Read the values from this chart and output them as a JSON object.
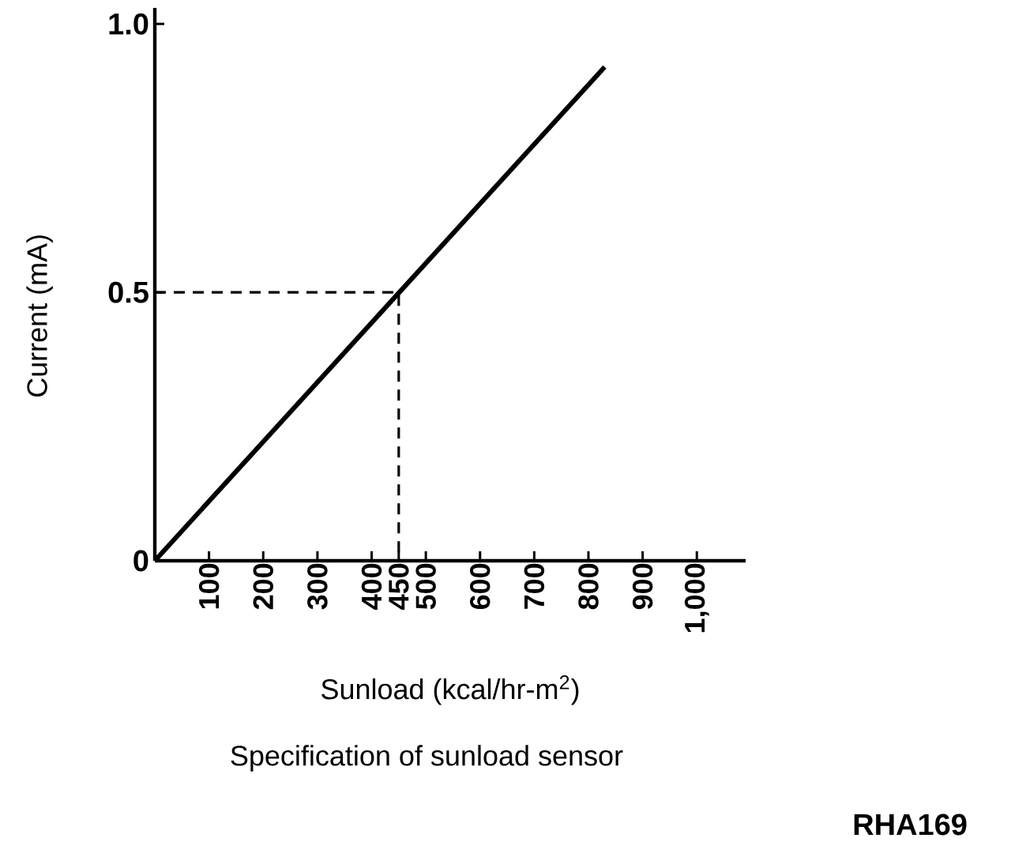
{
  "chart_data": {
    "type": "line",
    "title": "Specification of sunload sensor",
    "xlabel": "Sunload (kcal/hr-m$^{2}$)",
    "ylabel": "Current (mA)",
    "annotations": [
      "RHA169"
    ],
    "series": [
      {
        "x": [
          0,
          830
        ],
        "values": [
          0,
          0.92
        ],
        "color": "#000000",
        "line_style": "solid"
      },
      {
        "x": [
          0,
          450,
          450
        ],
        "values": [
          0.5,
          0.5,
          0
        ],
        "color": "#000000",
        "line_style": "dashed"
      }
    ],
    "xlim": [
      0,
      1090
    ],
    "ylim": [
      0,
      1.03
    ],
    "xticks": [
      100,
      200,
      300,
      400,
      450,
      500,
      600,
      700,
      800,
      900,
      {
        "value": 1000,
        "label": "1,000"
      }
    ],
    "yticks": [
      0,
      0.5,
      {
        "value": 1,
        "label": "1.0"
      }
    ]
  }
}
